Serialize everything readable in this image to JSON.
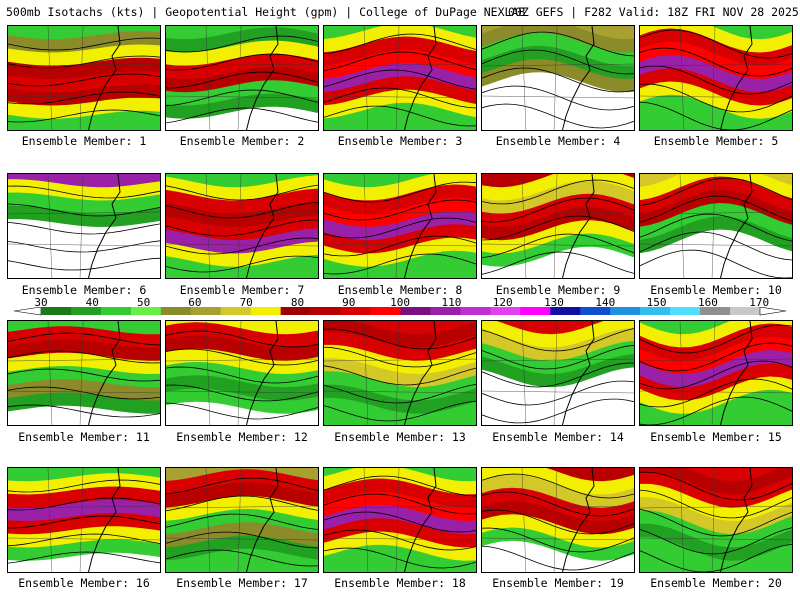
{
  "header": {
    "left_text": "500mb Isotachs (kts) | Geopotential Height (gpm) | College of DuPage NEXLAB",
    "right_text": "00Z GEFS | F282 Valid: 18Z FRI NOV 28 2025"
  },
  "colorbar": {
    "ticks": [
      "30",
      "40",
      "50",
      "60",
      "70",
      "80",
      "90",
      "100",
      "110",
      "120",
      "130",
      "140",
      "150",
      "160",
      "170"
    ],
    "colors": [
      "#1a7a1a",
      "#22a022",
      "#33cc33",
      "#66ee44",
      "#8b8b2a",
      "#a8a030",
      "#d4c828",
      "#f2f000",
      "#a00000",
      "#b80000",
      "#d80000",
      "#ff0000",
      "#7a1080",
      "#9a20a8",
      "#c030d0",
      "#e040f0",
      "#ff00ff",
      "#1010a0",
      "#1050d0",
      "#2090e0",
      "#30c0f0",
      "#50e0ff",
      "#909090",
      "#c8c8c8"
    ]
  },
  "members": [
    {
      "label": "Ensemble Member: 1",
      "scheme": "green-yellow-red"
    },
    {
      "label": "Ensemble Member: 2",
      "scheme": "green-red-diag"
    },
    {
      "label": "Ensemble Member: 3",
      "scheme": "red-purple"
    },
    {
      "label": "Ensemble Member: 4",
      "scheme": "olive-green"
    },
    {
      "label": "Ensemble Member: 5",
      "scheme": "red-purple"
    },
    {
      "label": "Ensemble Member: 6",
      "scheme": "green-diag"
    },
    {
      "label": "Ensemble Member: 7",
      "scheme": "red-trough"
    },
    {
      "label": "Ensemble Member: 8",
      "scheme": "red-purple"
    },
    {
      "label": "Ensemble Member: 9",
      "scheme": "red-yellow"
    },
    {
      "label": "Ensemble Member: 10",
      "scheme": "yellow-red"
    },
    {
      "label": "Ensemble Member: 11",
      "scheme": "red-diag"
    },
    {
      "label": "Ensemble Member: 12",
      "scheme": "yellow-red-trough"
    },
    {
      "label": "Ensemble Member: 13",
      "scheme": "red-band"
    },
    {
      "label": "Ensemble Member: 14",
      "scheme": "yellow-green"
    },
    {
      "label": "Ensemble Member: 15",
      "scheme": "red-purple"
    },
    {
      "label": "Ensemble Member: 16",
      "scheme": "purple-trough"
    },
    {
      "label": "Ensemble Member: 17",
      "scheme": "red-olive"
    },
    {
      "label": "Ensemble Member: 18",
      "scheme": "red-purple"
    },
    {
      "label": "Ensemble Member: 19",
      "scheme": "red-yellow"
    },
    {
      "label": "Ensemble Member: 20",
      "scheme": "red-band"
    }
  ]
}
